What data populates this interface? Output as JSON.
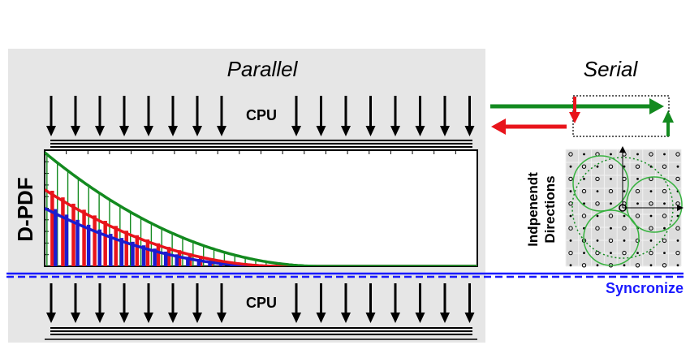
{
  "labels": {
    "parallel": "Parallel",
    "serial": "Serial",
    "cpu_top": "CPU",
    "cpu_bottom": "CPU",
    "dpdf": "D-PDF",
    "directions_line1": "Indpenendt",
    "directions_line2": "Directions",
    "synchronize": "Syncronize"
  },
  "colors": {
    "panel": "#e6e6e6",
    "green": "#138a1f",
    "red": "#e8141b",
    "blue": "#1c1ccf",
    "sync": "#1a1aff",
    "lattice_bg": "#dcdcdc"
  },
  "arrows": {
    "left_group_count": 8,
    "right_group_count": 8
  },
  "chart_data": {
    "type": "bar",
    "title": "",
    "xlabel": "",
    "ylabel": "D-PDF",
    "xlim": [
      0,
      1
    ],
    "ylim": [
      0,
      1
    ],
    "series": [
      {
        "name": "",
        "color": "green",
        "peak": 0.98,
        "cutoff": 0.64,
        "bars": 26
      },
      {
        "name": "",
        "color": "red",
        "peak": 0.66,
        "cutoff": 0.55,
        "bars": 22
      },
      {
        "name": "",
        "color": "blue",
        "peak": 0.5,
        "cutoff": 0.52,
        "bars": 20
      }
    ]
  }
}
